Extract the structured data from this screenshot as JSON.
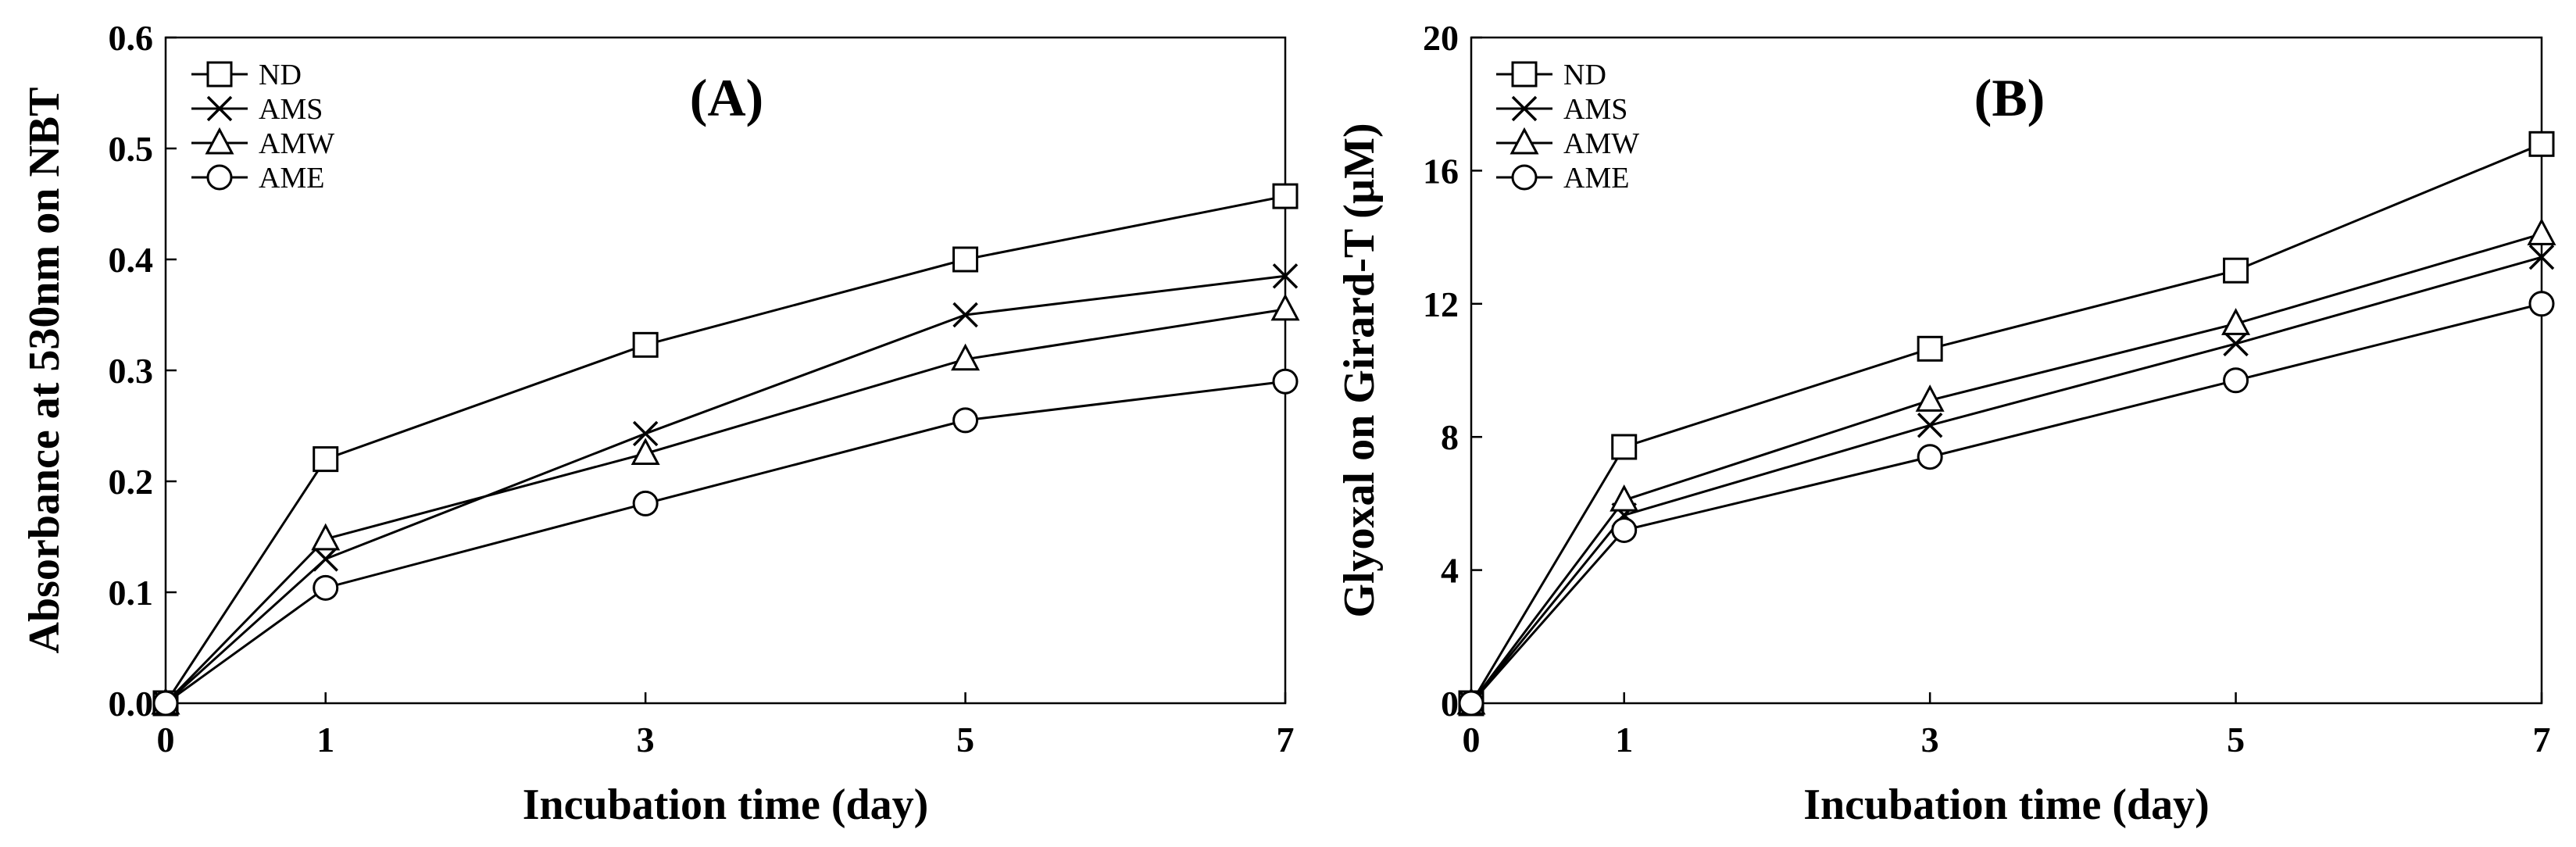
{
  "chart_data": [
    {
      "type": "line",
      "title": "(A)",
      "xlabel": "Incubation time (day)",
      "ylabel": "Absorbance at 530nm on NBT",
      "x": [
        0,
        1,
        3,
        5,
        7
      ],
      "xticks": [
        "0",
        "1",
        "3",
        "5",
        "7"
      ],
      "ylim": [
        0,
        0.6
      ],
      "yticks": [
        "0.0",
        "0.1",
        "0.2",
        "0.3",
        "0.4",
        "0.5",
        "0.6"
      ],
      "grid": false,
      "legend_position": "top-left",
      "series": [
        {
          "name": "ND",
          "marker": "square",
          "values": [
            0,
            0.22,
            0.323,
            0.4,
            0.457
          ]
        },
        {
          "name": "AMS",
          "marker": "x",
          "values": [
            0,
            0.13,
            0.243,
            0.35,
            0.385
          ]
        },
        {
          "name": "AMW",
          "marker": "triangle",
          "values": [
            0,
            0.148,
            0.225,
            0.31,
            0.355
          ]
        },
        {
          "name": "AME",
          "marker": "circle",
          "values": [
            0,
            0.104,
            0.18,
            0.255,
            0.29
          ]
        }
      ]
    },
    {
      "type": "line",
      "title": "(B)",
      "xlabel": "Incubation time (day)",
      "ylabel": "Glyoxal on Girard-T (µM)",
      "x": [
        0,
        1,
        3,
        5,
        7
      ],
      "xticks": [
        "0",
        "1",
        "3",
        "5",
        "7"
      ],
      "ylim": [
        0,
        20
      ],
      "yticks": [
        "0",
        "4",
        "8",
        "12",
        "16",
        "20"
      ],
      "grid": false,
      "legend_position": "top-left",
      "series": [
        {
          "name": "ND",
          "marker": "square",
          "values": [
            0,
            7.7,
            10.65,
            13.0,
            16.8
          ]
        },
        {
          "name": "AMS",
          "marker": "x",
          "values": [
            0,
            5.65,
            8.35,
            10.8,
            13.4
          ]
        },
        {
          "name": "AMW",
          "marker": "triangle",
          "values": [
            0,
            6.1,
            9.1,
            11.4,
            14.1
          ]
        },
        {
          "name": "AME",
          "marker": "circle",
          "values": [
            0,
            5.2,
            7.4,
            9.7,
            12.0
          ]
        }
      ]
    }
  ]
}
